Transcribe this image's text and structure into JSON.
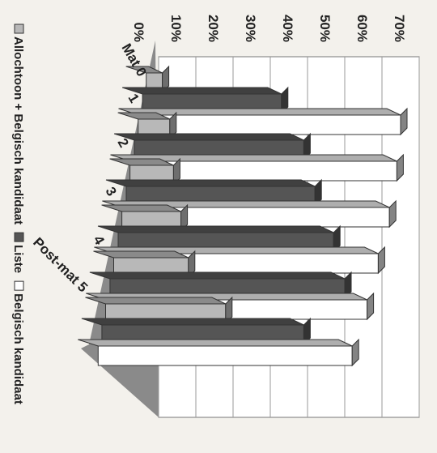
{
  "chart_data": {
    "type": "bar",
    "orientation": "horizontal-3d",
    "categories": [
      "Mat 0",
      "1",
      "2",
      "3",
      "4",
      "Post-mat 5"
    ],
    "series": [
      {
        "name": "Allochtoon + Belgisch kandidaat",
        "values": [
          1,
          3,
          4,
          6,
          8,
          18
        ],
        "color": "#b8b8b8"
      },
      {
        "name": "Liste",
        "values": [
          33,
          39,
          42,
          47,
          50,
          39
        ],
        "color": "#555555"
      },
      {
        "name": "Belgisch kandidaat",
        "values": [
          65,
          64,
          62,
          59,
          56,
          52
        ],
        "color": "#ffffff"
      }
    ],
    "x_ticks": [
      "0%",
      "10%",
      "20%",
      "30%",
      "40%",
      "50%",
      "60%",
      "70%"
    ],
    "xlim": [
      0,
      70
    ],
    "grid": true,
    "legend_position": "bottom",
    "legend_label_separator": " "
  }
}
